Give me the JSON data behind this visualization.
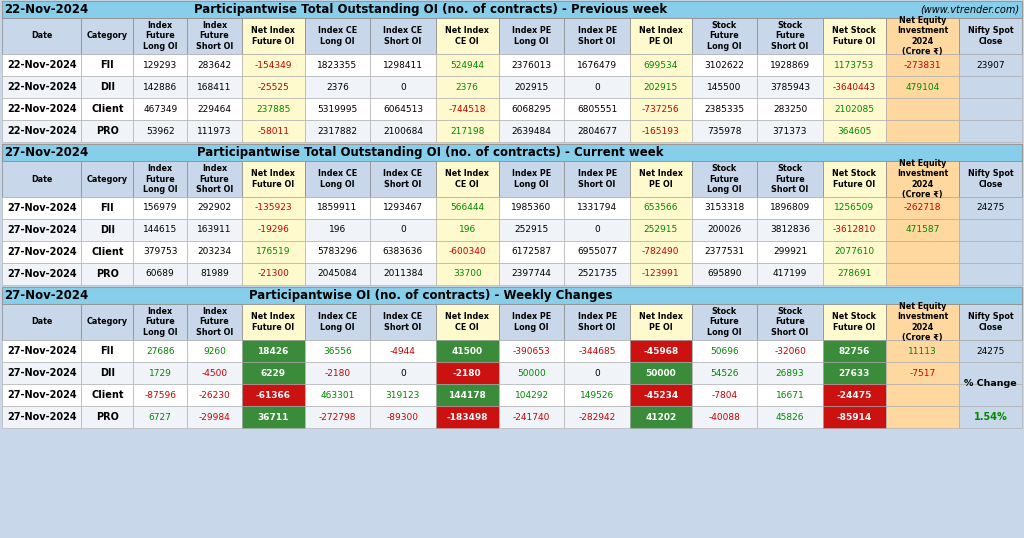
{
  "title1_date": "22-Nov-2024",
  "title1_main": "Participantwise Total Outstanding OI (no. of contracts) - Previous week",
  "title1_suffix": "(www.vtrender.com)",
  "title2_date": "27-Nov-2024",
  "title2_main": "Participantwise Total Outstanding OI (no. of contracts) - Current week",
  "title3_date": "27-Nov-2024",
  "title3_main": "Participantwise OI (no. of contracts) - Weekly Changes",
  "col_headers": [
    "Date",
    "Category",
    "Index\nFuture\nLong OI",
    "Index\nFuture\nShort OI",
    "Net Index\nFuture OI",
    "Index CE\nLong OI",
    "Index CE\nShort OI",
    "Net Index\nCE OI",
    "Index PE\nLong OI",
    "Index PE\nShort OI",
    "Net Index\nPE OI",
    "Stock\nFuture\nLong OI",
    "Stock\nFuture\nShort OI",
    "Net Stock\nFuture OI",
    "Net Equity\nInvestment\n2024\n(Crore ₹)",
    "Nifty Spot\nClose"
  ],
  "section1_rows": [
    [
      "22-Nov-2024",
      "FII",
      "129293",
      "283642",
      "-154349",
      "1823355",
      "1298411",
      "524944",
      "2376013",
      "1676479",
      "699534",
      "3102622",
      "1928869",
      "1173753",
      "-273831",
      "23907"
    ],
    [
      "22-Nov-2024",
      "DII",
      "142886",
      "168411",
      "-25525",
      "2376",
      "0",
      "2376",
      "202915",
      "0",
      "202915",
      "145500",
      "3785943",
      "-3640443",
      "479104",
      ""
    ],
    [
      "22-Nov-2024",
      "Client",
      "467349",
      "229464",
      "237885",
      "5319995",
      "6064513",
      "-744518",
      "6068295",
      "6805551",
      "-737256",
      "2385335",
      "283250",
      "2102085",
      "",
      ""
    ],
    [
      "22-Nov-2024",
      "PRO",
      "53962",
      "111973",
      "-58011",
      "2317882",
      "2100684",
      "217198",
      "2639484",
      "2804677",
      "-165193",
      "735978",
      "371373",
      "364605",
      "",
      ""
    ]
  ],
  "section2_rows": [
    [
      "27-Nov-2024",
      "FII",
      "156979",
      "292902",
      "-135923",
      "1859911",
      "1293467",
      "566444",
      "1985360",
      "1331794",
      "653566",
      "3153318",
      "1896809",
      "1256509",
      "-262718",
      "24275"
    ],
    [
      "27-Nov-2024",
      "DII",
      "144615",
      "163911",
      "-19296",
      "196",
      "0",
      "196",
      "252915",
      "0",
      "252915",
      "200026",
      "3812836",
      "-3612810",
      "471587",
      ""
    ],
    [
      "27-Nov-2024",
      "Client",
      "379753",
      "203234",
      "176519",
      "5783296",
      "6383636",
      "-600340",
      "6172587",
      "6955077",
      "-782490",
      "2377531",
      "299921",
      "2077610",
      "",
      ""
    ],
    [
      "27-Nov-2024",
      "PRO",
      "60689",
      "81989",
      "-21300",
      "2045084",
      "2011384",
      "33700",
      "2397744",
      "2521735",
      "-123991",
      "695890",
      "417199",
      "278691",
      "",
      ""
    ]
  ],
  "section3_rows": [
    [
      "27-Nov-2024",
      "FII",
      "27686",
      "9260",
      "18426",
      "36556",
      "-4944",
      "41500",
      "-390653",
      "-344685",
      "-45968",
      "50696",
      "-32060",
      "82756",
      "11113",
      "24275"
    ],
    [
      "27-Nov-2024",
      "DII",
      "1729",
      "-4500",
      "6229",
      "-2180",
      "0",
      "-2180",
      "50000",
      "0",
      "50000",
      "54526",
      "26893",
      "27633",
      "-7517",
      ""
    ],
    [
      "27-Nov-2024",
      "Client",
      "-87596",
      "-26230",
      "-61366",
      "463301",
      "319123",
      "144178",
      "104292",
      "149526",
      "-45234",
      "-7804",
      "16671",
      "-24475",
      "",
      ""
    ],
    [
      "27-Nov-2024",
      "PRO",
      "6727",
      "-29984",
      "36711",
      "-272798",
      "-89300",
      "-183498",
      "-241740",
      "-282942",
      "41202",
      "-40088",
      "45826",
      "-85914",
      "",
      ""
    ]
  ],
  "pct_change": "1.54%",
  "col_net_indices": [
    4,
    7,
    10,
    13
  ],
  "col_net_equity_idx": 14,
  "bg_light_blue": "#c8d8ea",
  "bg_section_header": "#87CEEB",
  "bg_row_even": "#ffffff",
  "bg_row_odd": "#f0f4f8",
  "bg_net_yellow": "#fffacd",
  "bg_net_equity": "#ffd8a0",
  "bg_nifty_spot": "#c8d8ea",
  "color_positive": "#008800",
  "color_negative": "#cc0000",
  "color_black": "#000000",
  "color_white": "#ffffff",
  "color_green_bg": "#3a8c3a",
  "color_red_bg": "#cc1111"
}
